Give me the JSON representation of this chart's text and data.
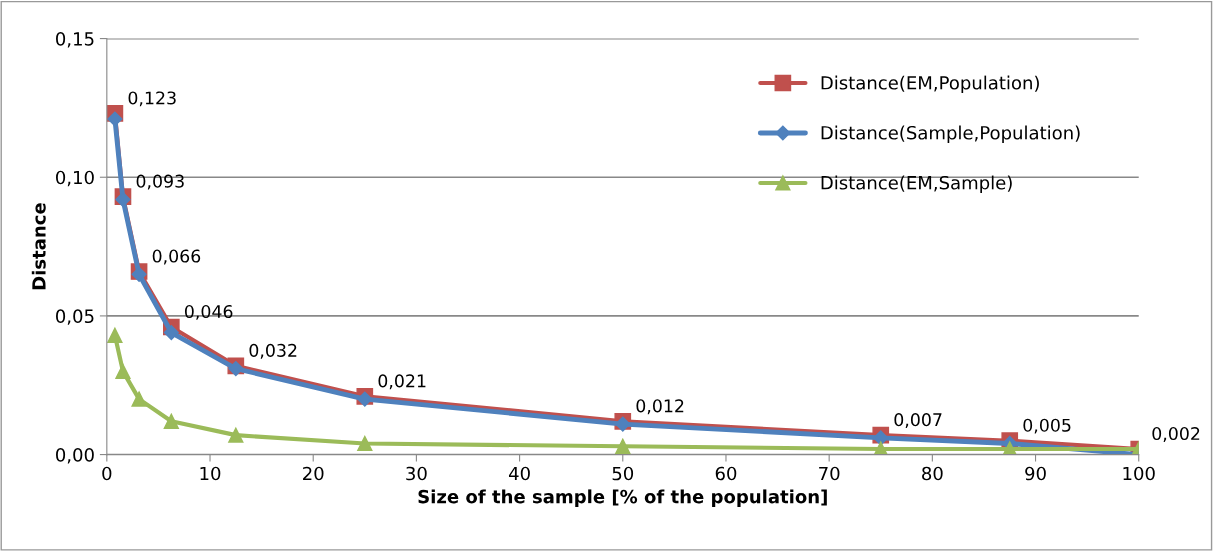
{
  "chart_data": {
    "type": "line",
    "xlabel": "Size of the sample [% of the population]",
    "ylabel": "Distance",
    "x": [
      0.78125,
      1.5625,
      3.125,
      6.25,
      12.5,
      25,
      50,
      75,
      87.5,
      100
    ],
    "series": [
      {
        "name": "Distance(EM,Population)",
        "color": "#c0504d",
        "marker": "square",
        "values": [
          0.123,
          0.093,
          0.066,
          0.046,
          0.032,
          0.021,
          0.012,
          0.007,
          0.005,
          0.002
        ],
        "value_labels": [
          "0,123",
          "0,093",
          "0,066",
          "0,046",
          "0,032",
          "0,021",
          "0,012",
          "0,007",
          "0,005",
          "0,002"
        ]
      },
      {
        "name": "Distance(Sample,Population)",
        "color": "#4f81bd",
        "marker": "diamond",
        "values": [
          0.121,
          0.092,
          0.065,
          0.044,
          0.031,
          0.02,
          0.011,
          0.006,
          0.004,
          0.0
        ]
      },
      {
        "name": "Distance(EM,Sample)",
        "color": "#9bbb59",
        "marker": "triangle",
        "values": [
          0.043,
          0.03,
          0.02,
          0.012,
          0.007,
          0.004,
          0.003,
          0.002,
          0.002,
          0.002
        ]
      }
    ],
    "xlim": [
      0,
      100
    ],
    "xticks": [
      0,
      10,
      20,
      30,
      40,
      50,
      60,
      70,
      80,
      90,
      100
    ],
    "ylim": [
      0,
      0.15
    ],
    "yticks": [
      {
        "value": 0,
        "label": "0,00"
      },
      {
        "value": 0.05,
        "label": "0,05"
      },
      {
        "value": 0.1,
        "label": "0,10"
      },
      {
        "value": 0.15,
        "label": "0,15"
      }
    ],
    "grid": "y",
    "legend": "top right",
    "line_style": "solid"
  }
}
